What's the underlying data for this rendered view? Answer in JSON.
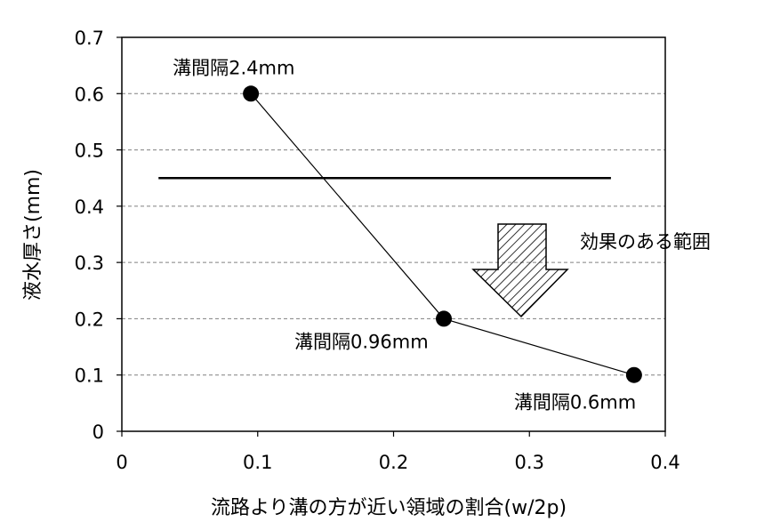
{
  "chart_data": {
    "type": "scatter",
    "title": "",
    "xlabel": "流路より溝の方が近い領域の割合(w/2p)",
    "ylabel": "液水厚さ(mm)",
    "xlim": [
      0,
      0.4
    ],
    "ylim": [
      0,
      0.7
    ],
    "x_ticks": [
      0,
      0.1,
      0.2,
      0.3,
      0.4
    ],
    "y_ticks": [
      0,
      0.1,
      0.2,
      0.3,
      0.4,
      0.5,
      0.6,
      0.7
    ],
    "x_tick_labels": [
      "0",
      "0.1",
      "0.2",
      "0.3",
      "0.4"
    ],
    "y_tick_labels": [
      "0",
      "0.1",
      "0.2",
      "0.3",
      "0.4",
      "0.5",
      "0.6",
      "0.7"
    ],
    "grid": "horizontal dashed",
    "series": [
      {
        "x": [
          0.095,
          0.237,
          0.377
        ],
        "y": [
          0.6,
          0.2,
          0.1
        ],
        "point_labels": [
          "溝間隔2.4mm",
          "溝間隔0.96mm",
          "溝間隔0.6mm"
        ]
      }
    ],
    "threshold_line": {
      "y": 0.45,
      "x_start": 0.027,
      "x_end": 0.36
    },
    "annotation": {
      "text": "効果のある範囲"
    }
  },
  "colors": {
    "line": "#000000",
    "marker": "#000000",
    "grid": "#808080",
    "background": "#ffffff"
  }
}
